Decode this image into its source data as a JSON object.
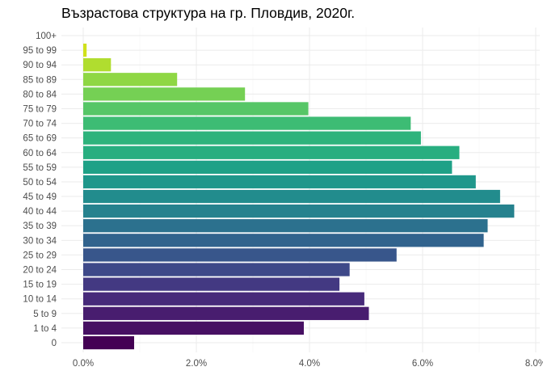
{
  "chart_data": {
    "type": "bar",
    "orientation": "horizontal",
    "title": "Възрастова структура на гр. Пловдив, 2020г.",
    "xlabel": "",
    "ylabel": "",
    "categories": [
      "0",
      "1 to 4",
      "5 to 9",
      "10 to 14",
      "15 to 19",
      "20 to 24",
      "25 to 29",
      "30 to 34",
      "35 to 39",
      "40 to 44",
      "45 to 49",
      "50 to 54",
      "55 to 59",
      "60 to 64",
      "65 to 69",
      "70 to 74",
      "75 to 79",
      "80 to 84",
      "85 to 89",
      "90 to 94",
      "95 to 99",
      "100+"
    ],
    "values": [
      0.9,
      3.9,
      5.05,
      4.97,
      4.53,
      4.71,
      5.54,
      7.08,
      7.15,
      7.62,
      7.37,
      6.94,
      6.52,
      6.65,
      5.97,
      5.79,
      3.98,
      2.86,
      1.66,
      0.49,
      0.06,
      0.0
    ],
    "xlim": [
      0,
      8
    ],
    "xticks": [
      "0.0%",
      "2.0%",
      "4.0%",
      "6.0%",
      "8.0%"
    ],
    "grid": true,
    "colors": [
      "#440154",
      "#471063",
      "#481d6f",
      "#472a7a",
      "#433982",
      "#3e4989",
      "#38568b",
      "#31638d",
      "#2c718e",
      "#26828e",
      "#228c8d",
      "#1f978b",
      "#1fa187",
      "#28ae80",
      "#2eb37c",
      "#3dbc74",
      "#56c667",
      "#75d054",
      "#8fd744",
      "#b0dd2f",
      "#d0e11c",
      "#fde725"
    ]
  }
}
